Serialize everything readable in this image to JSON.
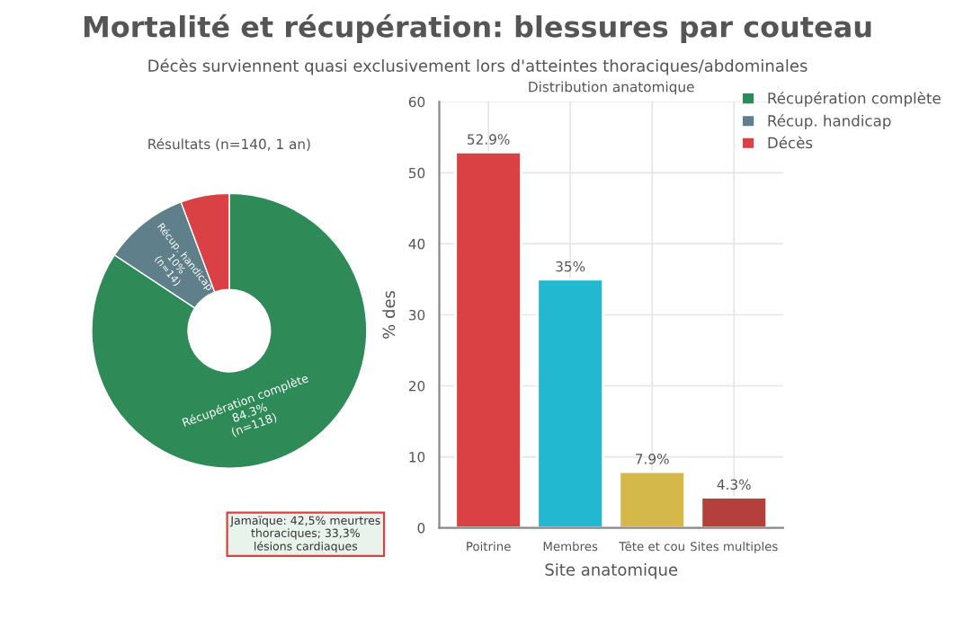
{
  "chart_data": [
    {
      "type": "donut",
      "title": "Mortalité et récupération: blessures par couteau",
      "subtitle": "Décès surviennent quasi exclusivement lors d'atteintes thoraciques/abdominales",
      "legend": "top right",
      "annotations": [
        "Résultats (n=140, 1 an)"
      ],
      "categories": [
        "Récupération complète",
        "Récup. handicap",
        "Décès"
      ],
      "values": [
        84.3,
        10,
        5.7
      ],
      "value_labels": [
        "Récupération complète\n84.3%\n(n=118)",
        "Récup. handicap\n10%\n(n=14)",
        null
      ],
      "colors": [
        "#2e8b57",
        "#5f7f8a",
        "#d94144"
      ]
    },
    {
      "type": "bar",
      "xlabel": "Site anatomique",
      "ylabel": "% des",
      "annotations": [
        "Distribution anatomique",
        "Jamaïque: 42,5% meurtres\nthoraciques; 33,3%\nlésions cardiaques"
      ],
      "categories": [
        "Poitrine",
        "Membres",
        "Tête et cou",
        "Sites multiples"
      ],
      "values": [
        52.9,
        35,
        7.9,
        4.3
      ],
      "value_labels": [
        "52.9%",
        "35%",
        "7.9%",
        "4.3%"
      ],
      "colors": [
        "#d94144",
        "#22b8cf",
        "#d4b94a",
        "#b5403b"
      ],
      "ylim": [
        0,
        60
      ],
      "yticks": [
        0,
        10,
        20,
        30,
        40,
        50,
        60
      ],
      "grid": true
    }
  ]
}
